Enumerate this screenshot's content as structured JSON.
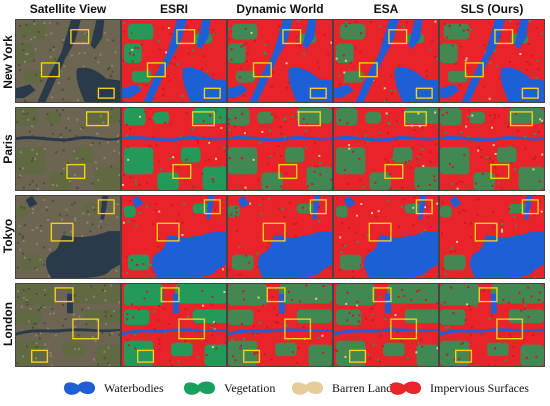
{
  "columns": [
    "Satellite View",
    "ESRI",
    "Dynamic World",
    "ESA",
    "SLS (Ours)"
  ],
  "rows": [
    "New York",
    "Paris",
    "Tokyo",
    "London"
  ],
  "legend": [
    {
      "label": "Waterbodies",
      "color": "#1f5fd6"
    },
    {
      "label": "Vegetation",
      "color": "#19a05c"
    },
    {
      "label": "Barren Land",
      "color": "#e7cc9b"
    },
    {
      "label": "Impervious Surfaces",
      "color": "#e8232a"
    }
  ],
  "colors": {
    "impervious": "#e8232a",
    "water": "#1f5fd6",
    "vegetation": "#19a05c",
    "barren": "#e7cc9b",
    "highlight_box": "#f2d21b",
    "satellite_base": "#6b6552"
  }
}
